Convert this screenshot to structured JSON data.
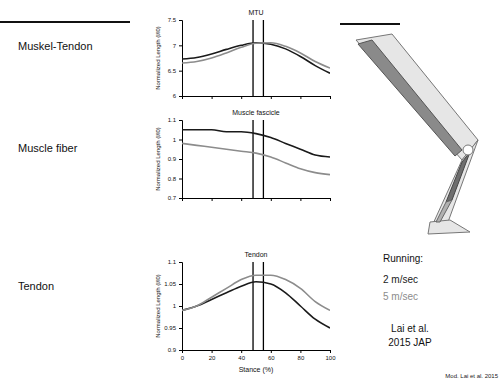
{
  "chart_data": [
    {
      "type": "line",
      "title": "MTU",
      "y_label": "Normalized Length (l/l0)",
      "x": [
        0,
        10,
        20,
        30,
        40,
        50,
        60,
        70,
        80,
        90,
        100
      ],
      "series": [
        {
          "name": "2 m/sec",
          "color": "#1a1a1a",
          "values": [
            6.73,
            6.76,
            6.83,
            6.92,
            7.0,
            7.05,
            7.02,
            6.93,
            6.78,
            6.6,
            6.45
          ]
        },
        {
          "name": "5 m/sec",
          "color": "#8c8c8c",
          "values": [
            6.65,
            6.68,
            6.75,
            6.85,
            6.96,
            7.04,
            7.05,
            6.98,
            6.85,
            6.68,
            6.55
          ]
        }
      ],
      "xlim": [
        0,
        100
      ],
      "xticks": [
        0,
        20,
        40,
        60,
        80,
        100
      ],
      "ylim": [
        6,
        7.5
      ],
      "yticks": [
        6,
        6.5,
        7,
        7.5
      ],
      "vlines": [
        48,
        55
      ],
      "tick_labels": "y",
      "legend": "right"
    },
    {
      "type": "line",
      "title": "Muscle fascicle",
      "y_label": "Normalized Length (l/l0)",
      "x": [
        0,
        10,
        20,
        30,
        40,
        50,
        60,
        70,
        80,
        90,
        100
      ],
      "series": [
        {
          "color": "#1a1a1a",
          "values": [
            1.05,
            1.05,
            1.05,
            1.04,
            1.04,
            1.03,
            1.01,
            0.98,
            0.95,
            0.92,
            0.91
          ]
        },
        {
          "color": "#8c8c8c",
          "values": [
            0.98,
            0.97,
            0.96,
            0.95,
            0.94,
            0.93,
            0.91,
            0.88,
            0.85,
            0.83,
            0.82
          ]
        }
      ],
      "xlim": [
        0,
        100
      ],
      "xticks": [
        0,
        20,
        40,
        60,
        80,
        100
      ],
      "ylim": [
        0.7,
        1.1
      ],
      "yticks": [
        0.7,
        0.8,
        0.9,
        1,
        1.1
      ],
      "vlines": [
        48,
        55
      ],
      "tick_labels": "y"
    },
    {
      "type": "line",
      "title": "Tendon",
      "y_label": "Normalized Length (l/l0)",
      "x_label": "Stance (%)",
      "x": [
        0,
        10,
        20,
        30,
        40,
        50,
        60,
        70,
        80,
        90,
        100
      ],
      "series": [
        {
          "color": "#1a1a1a",
          "values": [
            0.99,
            1.0,
            1.015,
            1.03,
            1.045,
            1.055,
            1.05,
            1.03,
            1.0,
            0.97,
            0.95
          ]
        },
        {
          "color": "#8c8c8c",
          "values": [
            0.99,
            1.0,
            1.02,
            1.04,
            1.06,
            1.07,
            1.07,
            1.06,
            1.04,
            1.01,
            0.99
          ]
        }
      ],
      "xlim": [
        0,
        100
      ],
      "xticks": [
        0,
        20,
        40,
        60,
        80,
        100
      ],
      "ylim": [
        0.9,
        1.1
      ],
      "yticks": [
        0.9,
        0.95,
        1,
        1.05,
        1.1
      ],
      "vlines": [
        48,
        55
      ]
    }
  ],
  "slide": {
    "row_labels": [
      "Muskel-Tendon",
      "Muscle fiber",
      "Tendon"
    ],
    "legend_title": "Running:",
    "citation": [
      "Lai et al.",
      "2015 JAP"
    ],
    "source": "Mod. Lai et al. 2015"
  }
}
